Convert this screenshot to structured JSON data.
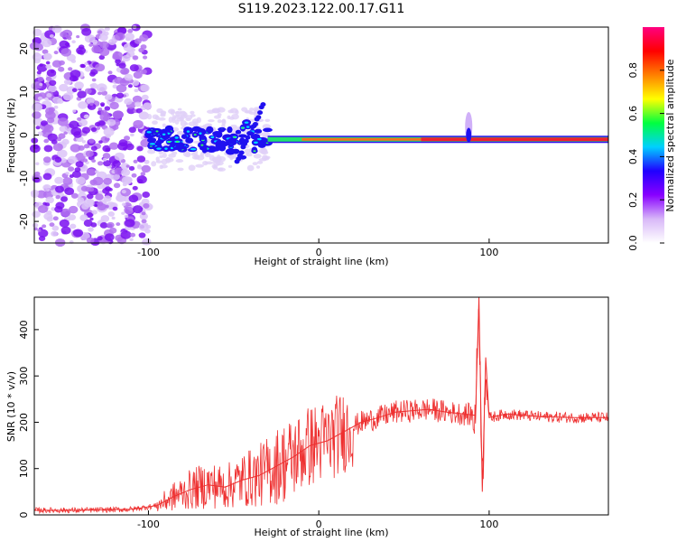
{
  "chart_data": [
    {
      "type": "heatmap",
      "title": "S119.2023.122.00.17.G11",
      "xlabel": "Height of straight line (km)",
      "ylabel": "Frequency (Hz)",
      "xlim": [
        -167,
        170
      ],
      "ylim": [
        -25,
        25
      ],
      "xticks": [
        -100,
        0,
        100
      ],
      "yticks": [
        -20,
        -10,
        0,
        10,
        20
      ],
      "colorbar": {
        "label": "Normalized spectral amplitude",
        "range": [
          0,
          1
        ],
        "ticks": [
          0.0,
          0.2,
          0.4,
          0.6,
          0.8
        ],
        "colormap": [
          "#ffffff",
          "#d8b8f8",
          "#8800ff",
          "#2000ff",
          "#00d0ff",
          "#00ff40",
          "#ffff00",
          "#ff8000",
          "#ff0000",
          "#ff0080"
        ]
      },
      "features": {
        "noise_region_x": [
          -167,
          -100
        ],
        "transition_region_x": [
          -100,
          -30
        ],
        "line_frequency_hz": -1,
        "line_region_x": [
          -30,
          170
        ],
        "spike_x": 88
      }
    },
    {
      "type": "line",
      "xlabel": "Height of straight line (km)",
      "ylabel": "SNR (10 * v/v)",
      "xlim": [
        -167,
        170
      ],
      "ylim": [
        0,
        470
      ],
      "xticks": [
        -100,
        0,
        100
      ],
      "yticks": [
        0,
        100,
        200,
        300,
        400
      ],
      "color": "#ee3030",
      "x": [
        -167,
        -140,
        -110,
        -95,
        -85,
        -75,
        -65,
        -55,
        -45,
        -35,
        -25,
        -15,
        -5,
        5,
        15,
        25,
        35,
        45,
        55,
        65,
        75,
        85,
        92,
        94,
        96,
        98,
        100,
        110,
        130,
        150,
        170
      ],
      "y": [
        10,
        10,
        12,
        20,
        40,
        55,
        65,
        60,
        75,
        85,
        105,
        125,
        150,
        160,
        180,
        200,
        210,
        222,
        225,
        228,
        222,
        218,
        215,
        470,
        50,
        340,
        210,
        218,
        212,
        210,
        210
      ]
    }
  ]
}
